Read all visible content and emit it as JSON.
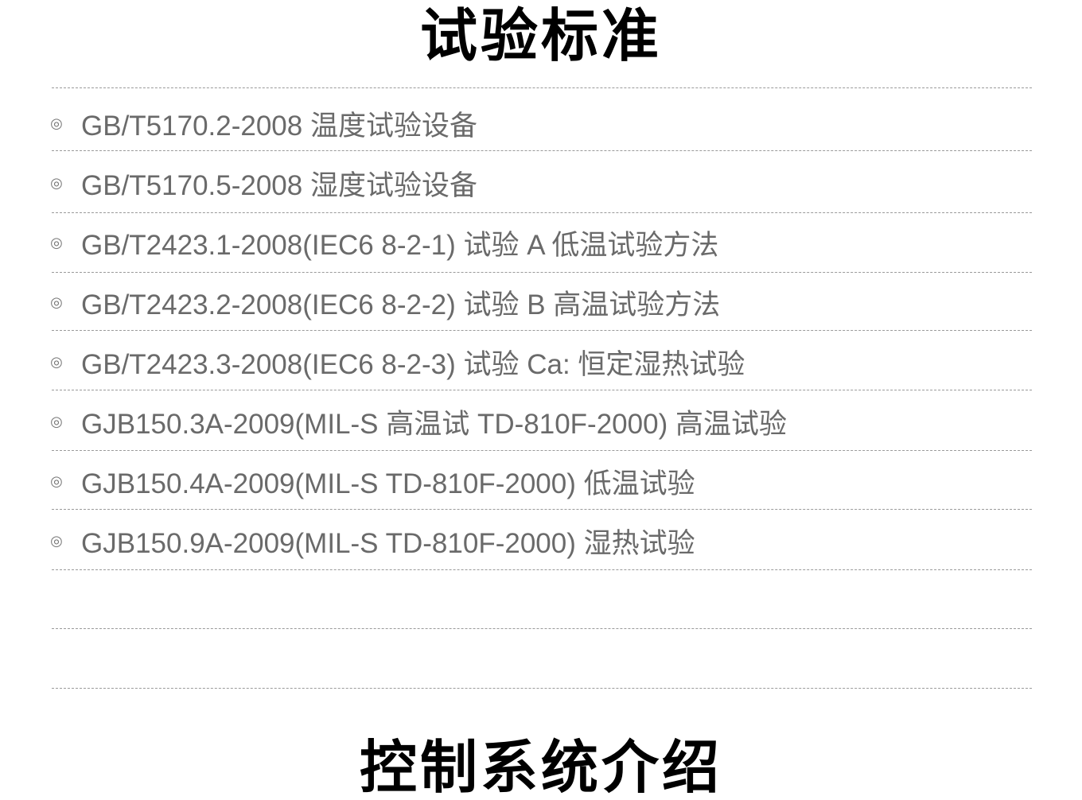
{
  "section_title": "试验标准",
  "next_section_title": "控制系统介绍",
  "bullet_icon": "double-circle-icon",
  "text_color": "#6a6a6a",
  "standards": [
    "GB/T5170.2-2008 温度试验设备",
    "GB/T5170.5-2008 湿度试验设备",
    "GB/T2423.1-2008(IEC6 8-2-1) 试验 A 低温试验方法",
    "GB/T2423.2-2008(IEC6 8-2-2) 试验 B 高温试验方法",
    "GB/T2423.3-2008(IEC6 8-2-3) 试验 Ca: 恒定湿热试验",
    "GJB150.3A-2009(MIL-S 高温试 TD-810F-2000) 高温试验",
    "GJB150.4A-2009(MIL-S TD-810F-2000) 低温试验",
    "GJB150.9A-2009(MIL-S TD-810F-2000) 湿热试验"
  ]
}
